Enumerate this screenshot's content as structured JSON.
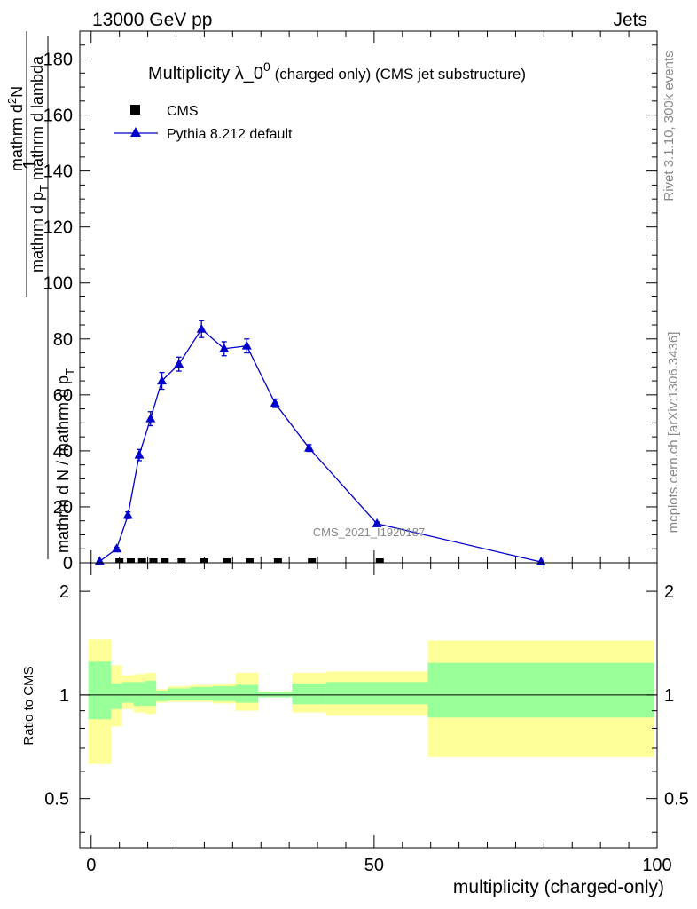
{
  "header": {
    "left": "13000 GeV pp",
    "right": "Jets"
  },
  "side_labels": {
    "rivet": "Rivet 3.1.10,  300k events",
    "mcplots": "mcplots.cern.ch [arXiv:1306.3436]"
  },
  "watermark": "CMS_2021_I1920187",
  "colors": {
    "pythia": "#0000cc",
    "cms": "#000000",
    "band_inner": "#99ff99",
    "band_outer": "#ffff99"
  },
  "chart_data": [
    {
      "type": "line",
      "title": "Multiplicity λ_0⁰ (charged only) (CMS jet substructure)",
      "title_parts": {
        "main": "Multiplicity λ_0",
        "sup": "0",
        "suffix": " (charged only) (CMS jet substructure)"
      },
      "ylabel_parts": {
        "num": "1",
        "den": "mathrm d N / mathrm d p",
        "den_sub": "T",
        "right_num": "mathrm d",
        "right_num_sup": "2",
        "right_num2": "N",
        "right_den": "mathrm d p",
        "right_den_sub": "T",
        "right_den2": " mathrm d lambda"
      },
      "xlim": [
        -2,
        100
      ],
      "ylim": [
        0,
        190
      ],
      "yticks": [
        0,
        20,
        40,
        60,
        80,
        100,
        120,
        140,
        160,
        180
      ],
      "legend_position": "top-left",
      "series": [
        {
          "name": "CMS",
          "marker": "square",
          "x": [
            5,
            7,
            9,
            11,
            13,
            16,
            20,
            24,
            28,
            33,
            39,
            51
          ],
          "y": [
            0,
            0,
            0,
            0,
            0,
            0,
            0,
            0,
            0,
            0,
            0,
            0
          ]
        },
        {
          "name": "Pythia 8.212 default",
          "marker": "triangle",
          "x": [
            1.5,
            4.5,
            6.5,
            8.5,
            10.5,
            12.5,
            15.5,
            19.5,
            23.5,
            27.5,
            32.5,
            38.5,
            50.5,
            79.5
          ],
          "y": [
            0.5,
            5,
            17,
            38.5,
            51.5,
            65,
            71,
            83.5,
            76.5,
            77.5,
            57,
            41,
            14,
            0.3
          ],
          "yerr": [
            0.2,
            0.5,
            1.2,
            2,
            2.5,
            3,
            2.5,
            3,
            2.5,
            2.5,
            1.5,
            1.2,
            0.6,
            0.1
          ]
        }
      ]
    },
    {
      "type": "area",
      "ylabel": "Ratio to CMS",
      "xlabel": "multiplicity (charged-only)",
      "xlim": [
        -2,
        100
      ],
      "ylim": [
        0.36,
        2.42
      ],
      "yticks": [
        0.5,
        1,
        2
      ],
      "xticks": [
        0,
        50,
        100
      ],
      "reference": 1,
      "bands": {
        "edges": [
          -0.5,
          3.5,
          5.5,
          7.5,
          9.5,
          11.5,
          13.5,
          17.5,
          21.5,
          25.5,
          29.5,
          35.5,
          41.5,
          59.5,
          99.5
        ],
        "inner_low": [
          0.85,
          0.91,
          0.95,
          0.93,
          0.93,
          0.96,
          0.965,
          0.965,
          0.96,
          0.95,
          0.985,
          0.94,
          0.94,
          0.86
        ],
        "inner_high": [
          1.25,
          1.08,
          1.09,
          1.09,
          1.1,
          1.03,
          1.045,
          1.055,
          1.06,
          1.07,
          1.02,
          1.08,
          1.09,
          1.24
        ],
        "outer_low": [
          0.63,
          0.81,
          0.91,
          0.89,
          0.88,
          0.95,
          0.955,
          0.955,
          0.945,
          0.9,
          0.985,
          0.89,
          0.87,
          0.66
        ],
        "outer_high": [
          1.45,
          1.22,
          1.14,
          1.15,
          1.16,
          1.04,
          1.06,
          1.07,
          1.08,
          1.16,
          1.025,
          1.16,
          1.17,
          1.44
        ]
      }
    }
  ]
}
